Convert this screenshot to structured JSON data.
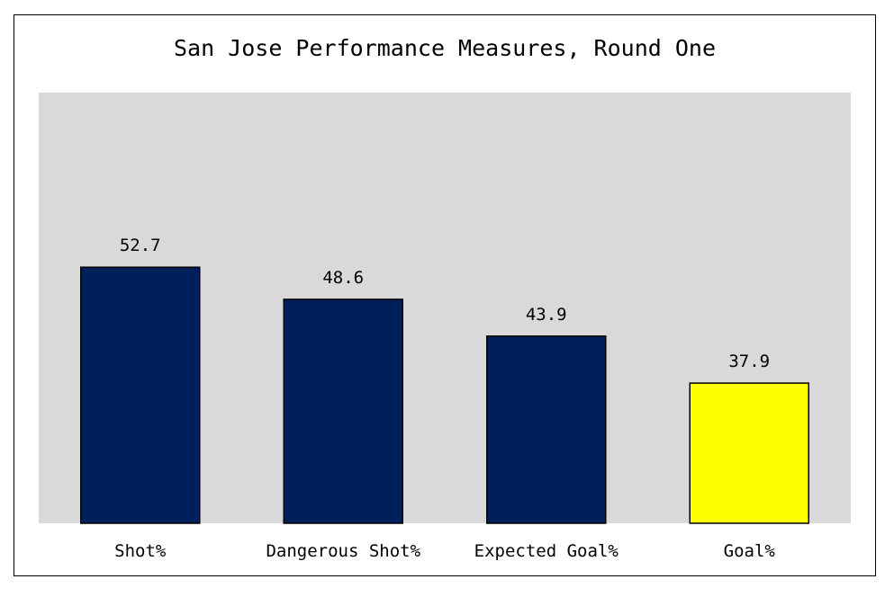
{
  "chart_data": {
    "type": "bar",
    "title": "San Jose Performance Measures, Round One",
    "xlabel": "",
    "ylabel": "",
    "categories": [
      "Shot%",
      "Dangerous Shot%",
      "Expected Goal%",
      "Goal%"
    ],
    "values": [
      52.7,
      48.6,
      43.9,
      37.9
    ],
    "data_labels": [
      "52.7",
      "48.6",
      "43.9",
      "37.9"
    ],
    "bar_colors": [
      "#00205b",
      "#00205b",
      "#00205b",
      "#ffff00"
    ],
    "ylim": [
      20,
      75
    ],
    "grid": false,
    "legend": "none",
    "plot_background": "#d9d9d9"
  }
}
